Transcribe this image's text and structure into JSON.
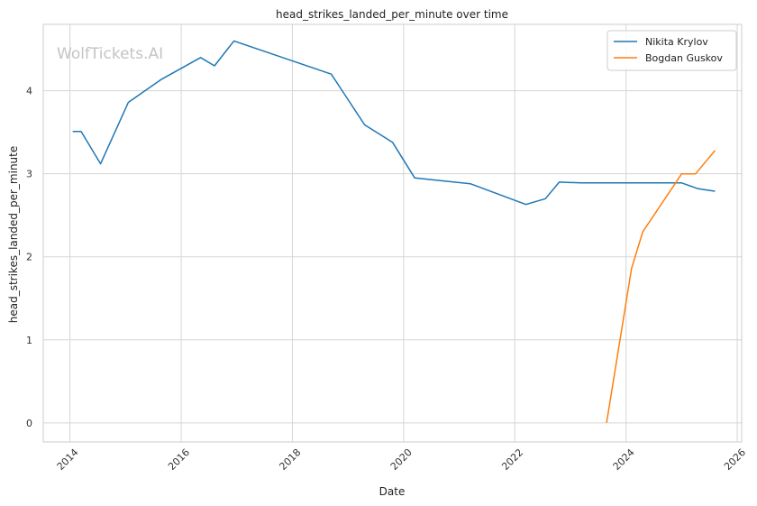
{
  "chart_data": {
    "type": "line",
    "title": "head_strikes_landed_per_minute over time",
    "xlabel": "Date",
    "ylabel": "head_strikes_landed_per_minute",
    "watermark": "WolfTickets.AI",
    "xlim": [
      2013.52,
      2026.08
    ],
    "ylim": [
      -0.23,
      4.8
    ],
    "x_ticks": [
      2014,
      2016,
      2018,
      2020,
      2022,
      2024,
      2026
    ],
    "y_ticks": [
      0,
      1,
      2,
      3,
      4
    ],
    "grid": true,
    "legend_position": "top-right",
    "series": [
      {
        "name": "Nikita Krylov",
        "color": "#1f77b4",
        "x": [
          2014.05,
          2014.2,
          2014.55,
          2015.05,
          2015.65,
          2016.35,
          2016.6,
          2016.95,
          2018.7,
          2019.3,
          2019.8,
          2020.2,
          2021.2,
          2022.2,
          2022.55,
          2022.8,
          2023.2,
          2025.0,
          2025.3,
          2025.6
        ],
        "y": [
          3.51,
          3.51,
          3.12,
          3.86,
          4.14,
          4.4,
          4.3,
          4.6,
          4.2,
          3.59,
          3.38,
          2.95,
          2.88,
          2.63,
          2.7,
          2.9,
          2.89,
          2.89,
          2.82,
          2.79
        ]
      },
      {
        "name": "Bogdan Guskov",
        "color": "#ff7f0e",
        "x": [
          2023.65,
          2024.1,
          2024.3,
          2025.0,
          2025.25,
          2025.6
        ],
        "y": [
          0.0,
          1.86,
          2.3,
          3.0,
          3.0,
          3.28
        ]
      }
    ]
  }
}
